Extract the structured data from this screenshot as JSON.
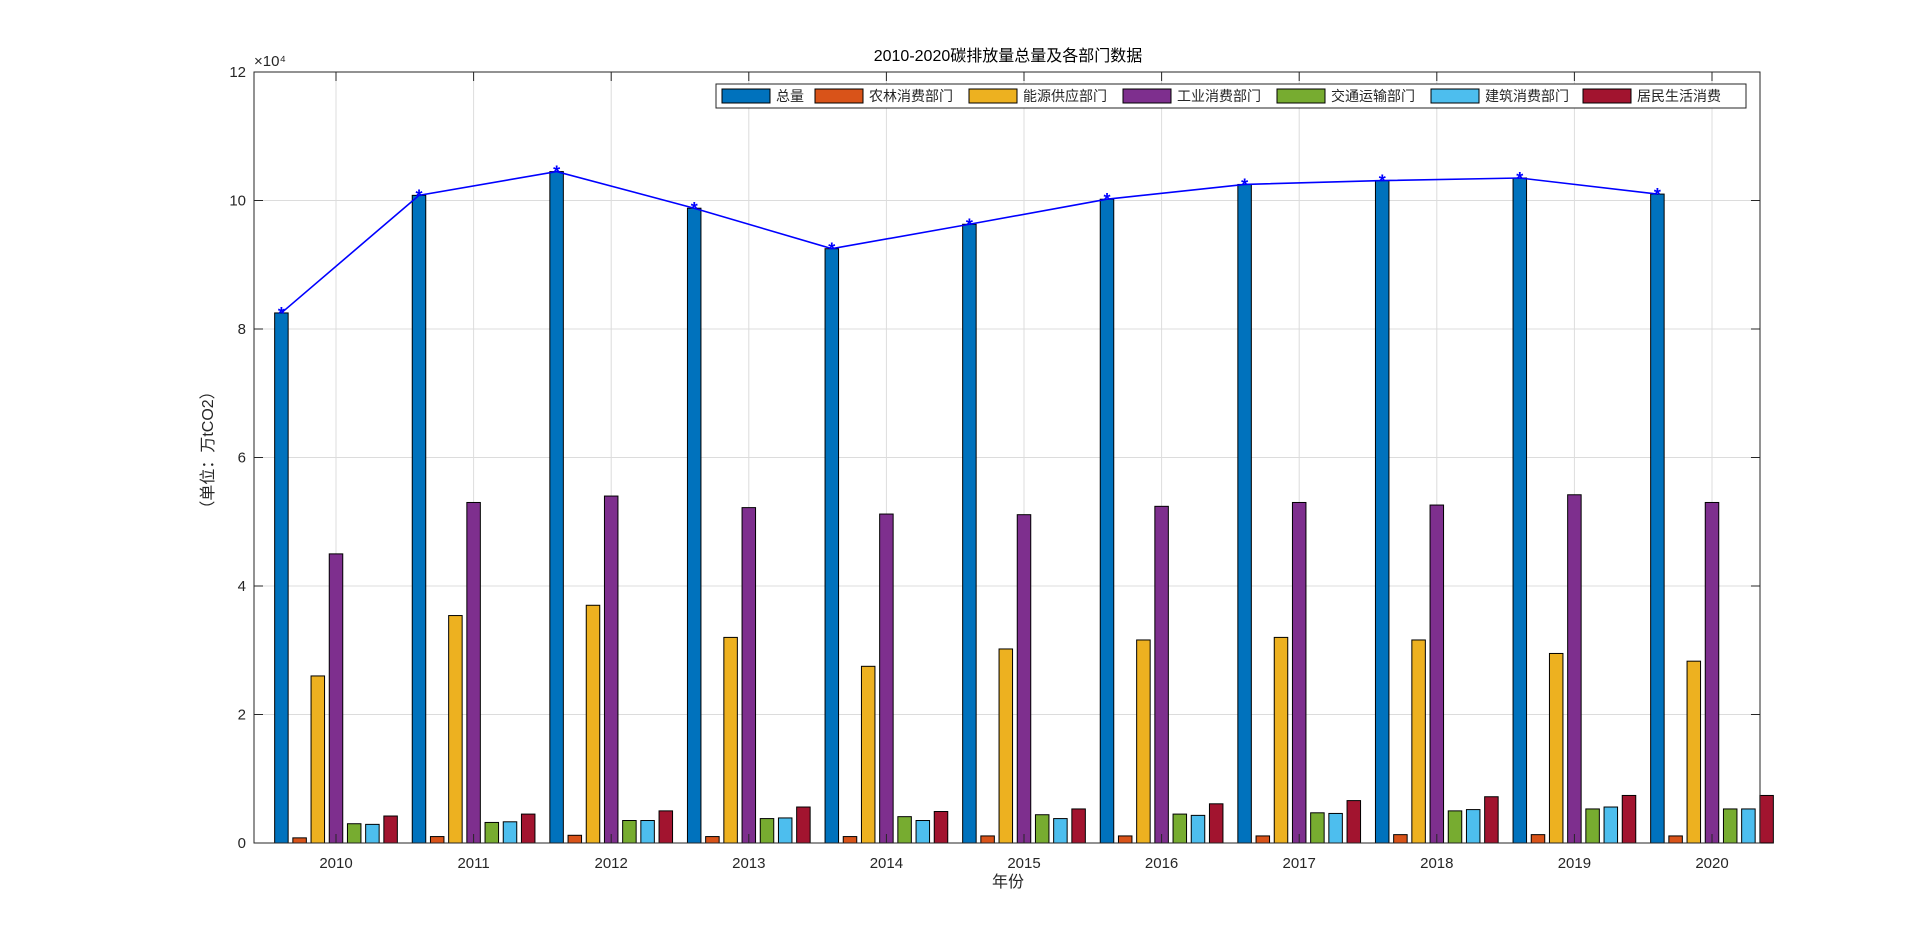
{
  "chart_data": {
    "type": "bar",
    "title": "2010-2020碳排放量总量及各部门数据",
    "xlabel": "年份",
    "ylabel": "（单位：万tCO2）",
    "exponent_label": "×10⁴",
    "ylim": [
      0,
      120000
    ],
    "yticks": [
      0,
      20000,
      40000,
      60000,
      80000,
      100000,
      120000
    ],
    "ytick_labels": [
      "0",
      "2",
      "4",
      "6",
      "8",
      "10",
      "12"
    ],
    "categories": [
      "2010",
      "2011",
      "2012",
      "2013",
      "2014",
      "2015",
      "2016",
      "2017",
      "2018",
      "2019",
      "2020"
    ],
    "grid": true,
    "legend_position": "top-right",
    "series": [
      {
        "name": "总量",
        "color": "#0072BD",
        "values": [
          82500,
          100800,
          104500,
          98800,
          92500,
          96300,
          100200,
          102500,
          103100,
          103500,
          101000
        ]
      },
      {
        "name": "农林消费部门",
        "color": "#D95319",
        "values": [
          800,
          1000,
          1200,
          1000,
          1000,
          1100,
          1100,
          1100,
          1300,
          1300,
          1100
        ]
      },
      {
        "name": "能源供应部门",
        "color": "#EDB120",
        "values": [
          26000,
          35400,
          37000,
          32000,
          27500,
          30200,
          31600,
          32000,
          31600,
          29500,
          28300
        ]
      },
      {
        "name": "工业消费部门",
        "color": "#7E2F8E",
        "values": [
          45000,
          53000,
          54000,
          52200,
          51200,
          51100,
          52400,
          53000,
          52600,
          54200,
          53000
        ]
      },
      {
        "name": "交通运输部门",
        "color": "#77AC30",
        "values": [
          3000,
          3200,
          3500,
          3800,
          4100,
          4400,
          4500,
          4700,
          5000,
          5300,
          5300
        ]
      },
      {
        "name": "建筑消费部门",
        "color": "#4DBEEE",
        "values": [
          2900,
          3300,
          3500,
          3900,
          3500,
          3800,
          4300,
          4600,
          5200,
          5600,
          5300
        ]
      },
      {
        "name": "居民生活消费",
        "color": "#A2142F",
        "values": [
          4200,
          4500,
          5000,
          5600,
          4900,
          5300,
          6100,
          6600,
          7200,
          7400,
          7400
        ]
      }
    ],
    "line_series": {
      "of": "总量",
      "color": "#0000FF",
      "marker": "*"
    }
  }
}
